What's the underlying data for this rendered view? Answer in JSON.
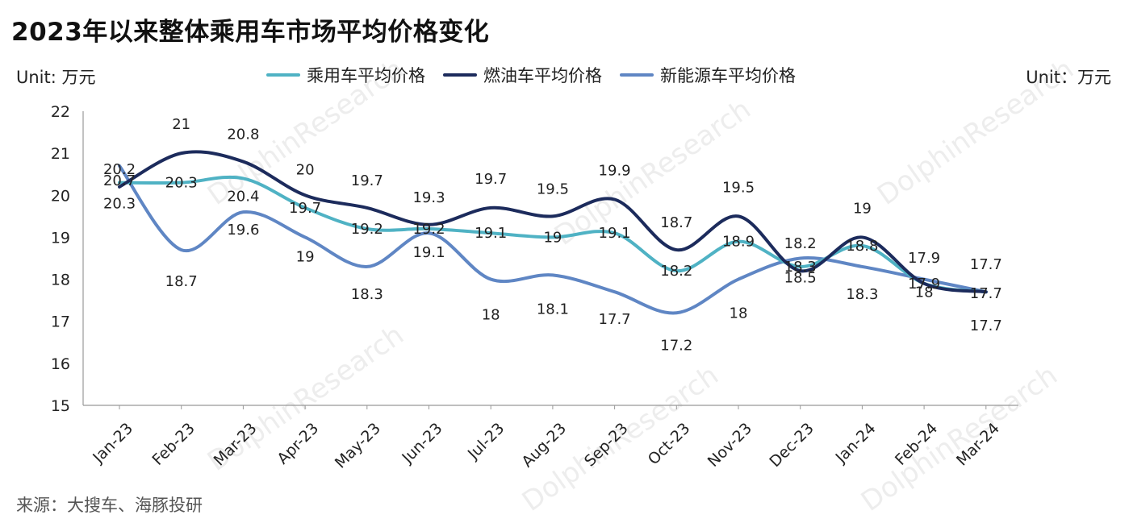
{
  "title": "2023年以来整体乘用车市场平均价格变化",
  "unit_left": "Unit: 万元",
  "unit_right": "Unit：万元",
  "source": "来源：大搜车、海豚投研",
  "watermark": "DolphinResearch",
  "colors": {
    "passenger": "#4fb2c4",
    "fuel": "#1c2b5c",
    "nev": "#5f86c4"
  },
  "chart_data": {
    "type": "line",
    "title": "2023年以来整体乘用车市场平均价格变化",
    "ylabel": "万元",
    "ylim": [
      15,
      22
    ],
    "yticks": [
      15,
      16,
      17,
      18,
      19,
      20,
      21,
      22
    ],
    "grid": false,
    "legend": "top-center",
    "categories": [
      "Jan-23",
      "Feb-23",
      "Mar-23",
      "Apr-23",
      "May-23",
      "Jun-23",
      "Jul-23",
      "Aug-23",
      "Sep-23",
      "Oct-23",
      "Nov-23",
      "Dec-23",
      "Jan-24",
      "Feb-24",
      "Mar-24"
    ],
    "series": [
      {
        "name": "乘用车平均价格",
        "color": "#4fb2c4",
        "values": [
          20.3,
          20.3,
          20.4,
          19.7,
          19.2,
          19.2,
          19.1,
          19.0,
          19.1,
          18.2,
          18.9,
          18.3,
          18.8,
          17.9,
          17.7
        ]
      },
      {
        "name": "燃油车平均价格",
        "color": "#1c2b5c",
        "values": [
          20.2,
          21.0,
          20.8,
          20.0,
          19.7,
          19.3,
          19.7,
          19.5,
          19.9,
          18.7,
          19.5,
          18.2,
          19.0,
          17.9,
          17.7
        ]
      },
      {
        "name": "新能源车平均价格",
        "color": "#5f86c4",
        "values": [
          20.7,
          18.7,
          19.6,
          19.0,
          18.3,
          19.1,
          18.0,
          18.1,
          17.7,
          17.2,
          18.0,
          18.5,
          18.3,
          18.0,
          17.7
        ]
      }
    ]
  }
}
